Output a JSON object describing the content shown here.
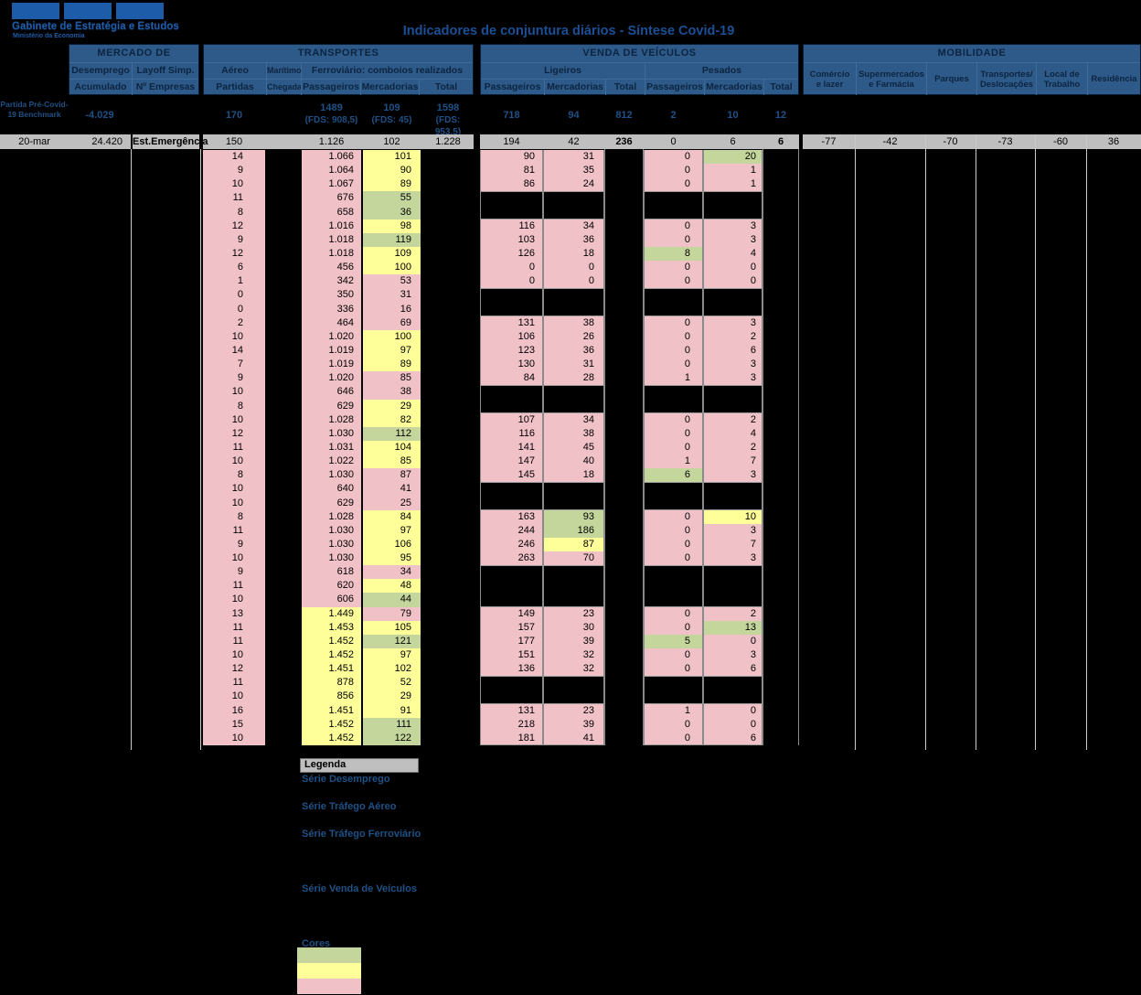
{
  "colors": {
    "pink": "#F0C1C6",
    "yellow": "#FFFF99",
    "green": "#C4D69B",
    "header_bg": "#2D5A88",
    "gray_row": "#BFBFBF",
    "blue_text": "#1F5186",
    "logo_blue": "#1D5CA9"
  },
  "logo": {
    "org": "Gabinete de Estratégia e Estudos",
    "ministry": "Ministério da Economia"
  },
  "title": "Indicadores de conjuntura diários - Síntese Covid-19",
  "headers": {
    "mercado": {
      "title": "MERCADO DE TRABALHO",
      "col1_l1": "Desemprego",
      "col1_l2": "Acumulado",
      "col2_l1": "Layoff Simp.",
      "col2_l2": "Nº Empresas"
    },
    "transportes": {
      "title": "TRANSPORTES",
      "aereo_l1": "Aéreo",
      "aereo_l2": "Partidas",
      "maritimo_l1": "Marítimo",
      "maritimo_l2": "Chegadas",
      "ferroviario": "Ferroviário: comboios realizados",
      "sub": [
        "Passageiros",
        "Mercadorias",
        "Total"
      ]
    },
    "venda": {
      "title": "VENDA DE VEÍCULOS",
      "ligeiros": "Ligeiros",
      "pesados": "Pesados",
      "sub": [
        "Passageiros",
        "Mercadorias",
        "Total"
      ]
    },
    "mobilidade": {
      "title": "MOBILIDADE",
      "cols": [
        [
          "Comércio",
          "e lazer"
        ],
        [
          "Supermercados",
          "e Farmácia"
        ],
        [
          "Parques",
          ""
        ],
        [
          "Transportes/",
          "Deslocações"
        ],
        [
          "Local de",
          "Trabalho"
        ],
        [
          "Residência",
          ""
        ]
      ]
    }
  },
  "benchmark": {
    "label_l1": "Partida Pré-Covid-",
    "label_l2": "19 Benchmark",
    "desemprego": "-4.029",
    "aereo": "170",
    "ferroviario": [
      {
        "v": "1489",
        "fds": "(FDS: 908,5)"
      },
      {
        "v": "109",
        "fds": "(FDS: 45)"
      },
      {
        "v": "1598",
        "fds": "(FDS: 953,5)"
      }
    ],
    "ligeiros": [
      "718",
      "94",
      "812"
    ],
    "pesados": [
      "2",
      "10",
      "12"
    ]
  },
  "current": {
    "date": "20-mar",
    "desemprego": "24.420",
    "estado": "Est.Emergência",
    "aereo": "150",
    "maritimo": "",
    "ferroviario": [
      "1.126",
      "102",
      "1.228"
    ],
    "ligeiros": [
      "194",
      "42",
      "236"
    ],
    "pesados": [
      "0",
      "6",
      "6"
    ],
    "mobilidade": [
      "-77",
      "-42",
      "-70",
      "-73",
      "-60",
      "36"
    ]
  },
  "row_schema": [
    "aereo_partidas",
    "comboios_passageiros",
    "passageiros_cor",
    "comboios_mercadorias",
    "mercadorias_cor",
    "ligeiros_passageiros",
    "ligeiros_mercadorias",
    "ligeiros_mercadorias_cor",
    "pesados_passageiros",
    "pesados_passageiros_cor",
    "pesados_mercadorias",
    "pesados_mercadorias_cor"
  ],
  "rows": [
    [
      "14",
      "1.066",
      "p",
      "101",
      "y",
      "90",
      "31",
      "p",
      "0",
      "p",
      "20",
      "g"
    ],
    [
      "9",
      "1.064",
      "p",
      "90",
      "y",
      "81",
      "35",
      "p",
      "0",
      "p",
      "1",
      "p"
    ],
    [
      "10",
      "1.067",
      "p",
      "89",
      "y",
      "86",
      "24",
      "p",
      "0",
      "p",
      "1",
      "p"
    ],
    [
      "11",
      "676",
      "p",
      "55",
      "g",
      null,
      null,
      null,
      null,
      null,
      null,
      null
    ],
    [
      "8",
      "658",
      "p",
      "36",
      "g",
      null,
      null,
      null,
      null,
      null,
      null,
      null
    ],
    [
      "12",
      "1.016",
      "p",
      "98",
      "y",
      "116",
      "34",
      "p",
      "0",
      "p",
      "3",
      "p"
    ],
    [
      "9",
      "1.018",
      "p",
      "119",
      "g",
      "103",
      "36",
      "p",
      "0",
      "p",
      "3",
      "p"
    ],
    [
      "12",
      "1.018",
      "p",
      "109",
      "y",
      "126",
      "18",
      "p",
      "8",
      "g",
      "4",
      "p"
    ],
    [
      "6",
      "456",
      "p",
      "100",
      "y",
      "0",
      "0",
      "p",
      "0",
      "p",
      "0",
      "p"
    ],
    [
      "1",
      "342",
      "p",
      "53",
      "p",
      "0",
      "0",
      "p",
      "0",
      "p",
      "0",
      "p"
    ],
    [
      "0",
      "350",
      "p",
      "31",
      "p",
      null,
      null,
      null,
      null,
      null,
      null,
      null
    ],
    [
      "0",
      "336",
      "p",
      "16",
      "p",
      null,
      null,
      null,
      null,
      null,
      null,
      null
    ],
    [
      "2",
      "464",
      "p",
      "69",
      "p",
      "131",
      "38",
      "p",
      "0",
      "p",
      "3",
      "p"
    ],
    [
      "10",
      "1.020",
      "p",
      "100",
      "y",
      "106",
      "26",
      "p",
      "0",
      "p",
      "2",
      "p"
    ],
    [
      "14",
      "1.019",
      "p",
      "97",
      "y",
      "123",
      "36",
      "p",
      "0",
      "p",
      "6",
      "p"
    ],
    [
      "7",
      "1.019",
      "p",
      "89",
      "y",
      "130",
      "31",
      "p",
      "0",
      "p",
      "3",
      "p"
    ],
    [
      "9",
      "1.020",
      "p",
      "85",
      "p",
      "84",
      "28",
      "p",
      "1",
      "p",
      "3",
      "p"
    ],
    [
      "10",
      "646",
      "p",
      "38",
      "p",
      null,
      null,
      null,
      null,
      null,
      null,
      null
    ],
    [
      "8",
      "629",
      "p",
      "29",
      "y",
      null,
      null,
      null,
      null,
      null,
      null,
      null
    ],
    [
      "10",
      "1.028",
      "p",
      "82",
      "y",
      "107",
      "34",
      "p",
      "0",
      "p",
      "2",
      "p"
    ],
    [
      "12",
      "1.030",
      "p",
      "112",
      "g",
      "116",
      "38",
      "p",
      "0",
      "p",
      "4",
      "p"
    ],
    [
      "11",
      "1.031",
      "p",
      "104",
      "y",
      "141",
      "45",
      "p",
      "0",
      "p",
      "2",
      "p"
    ],
    [
      "10",
      "1.022",
      "p",
      "85",
      "y",
      "147",
      "40",
      "p",
      "1",
      "p",
      "7",
      "p"
    ],
    [
      "8",
      "1.030",
      "p",
      "87",
      "p",
      "145",
      "18",
      "p",
      "6",
      "g",
      "3",
      "p"
    ],
    [
      "10",
      "640",
      "p",
      "41",
      "p",
      null,
      null,
      null,
      null,
      null,
      null,
      null
    ],
    [
      "10",
      "629",
      "p",
      "25",
      "p",
      null,
      null,
      null,
      null,
      null,
      null,
      null
    ],
    [
      "8",
      "1.028",
      "p",
      "84",
      "y",
      "163",
      "93",
      "g",
      "0",
      "p",
      "10",
      "y"
    ],
    [
      "11",
      "1.030",
      "p",
      "97",
      "y",
      "244",
      "186",
      "g",
      "0",
      "p",
      "3",
      "p"
    ],
    [
      "9",
      "1.030",
      "p",
      "106",
      "y",
      "246",
      "87",
      "y",
      "0",
      "p",
      "7",
      "p"
    ],
    [
      "10",
      "1.030",
      "p",
      "95",
      "y",
      "263",
      "70",
      "p",
      "0",
      "p",
      "3",
      "p"
    ],
    [
      "9",
      "618",
      "p",
      "34",
      "p",
      null,
      null,
      null,
      null,
      null,
      null,
      null
    ],
    [
      "11",
      "620",
      "p",
      "48",
      "y",
      null,
      null,
      null,
      null,
      null,
      null,
      null
    ],
    [
      "10",
      "606",
      "p",
      "44",
      "g",
      null,
      null,
      null,
      null,
      null,
      null,
      null
    ],
    [
      "13",
      "1.449",
      "y",
      "79",
      "p",
      "149",
      "23",
      "p",
      "0",
      "p",
      "2",
      "p"
    ],
    [
      "11",
      "1.453",
      "y",
      "105",
      "y",
      "157",
      "30",
      "p",
      "0",
      "p",
      "13",
      "g"
    ],
    [
      "11",
      "1.452",
      "y",
      "121",
      "g",
      "177",
      "39",
      "p",
      "5",
      "g",
      "0",
      "p"
    ],
    [
      "10",
      "1.452",
      "y",
      "97",
      "y",
      "151",
      "32",
      "p",
      "0",
      "p",
      "3",
      "p"
    ],
    [
      "12",
      "1.451",
      "y",
      "102",
      "y",
      "136",
      "32",
      "p",
      "0",
      "p",
      "6",
      "p"
    ],
    [
      "11",
      "878",
      "y",
      "52",
      "y",
      null,
      null,
      null,
      null,
      null,
      null,
      null
    ],
    [
      "10",
      "856",
      "y",
      "29",
      "y",
      null,
      null,
      null,
      null,
      null,
      null,
      null
    ],
    [
      "16",
      "1.451",
      "y",
      "91",
      "y",
      "131",
      "23",
      "p",
      "1",
      "p",
      "0",
      "p"
    ],
    [
      "15",
      "1.452",
      "y",
      "111",
      "g",
      "218",
      "39",
      "p",
      "0",
      "p",
      "0",
      "p"
    ],
    [
      "10",
      "1.452",
      "y",
      "122",
      "g",
      "181",
      "41",
      "p",
      "0",
      "p",
      "6",
      "p"
    ]
  ],
  "legend": {
    "header": "Legenda",
    "series": [
      "Série Desemprego",
      "Série Tráfego Aéreo",
      "Série Tráfego Ferroviário",
      "Série Venda de Veículos"
    ],
    "cores_label": "Cores",
    "swatches": [
      "green",
      "yellow",
      "pink"
    ]
  }
}
